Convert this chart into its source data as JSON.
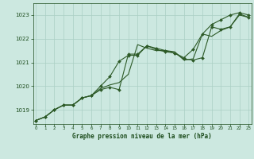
{
  "x": [
    0,
    1,
    2,
    3,
    4,
    5,
    6,
    7,
    8,
    9,
    10,
    11,
    12,
    13,
    14,
    15,
    16,
    17,
    18,
    19,
    20,
    21,
    22,
    23
  ],
  "line1": [
    1018.55,
    1018.7,
    1019.0,
    1019.2,
    1019.2,
    1019.5,
    1019.6,
    1019.85,
    1019.95,
    1019.85,
    1021.35,
    1021.35,
    1021.7,
    1021.55,
    1021.45,
    1021.4,
    1021.15,
    1021.1,
    1021.2,
    1022.5,
    1022.4,
    1022.5,
    1023.05,
    1022.9
  ],
  "line2": [
    1018.55,
    1018.7,
    1019.0,
    1019.2,
    1019.2,
    1019.5,
    1019.6,
    1020.0,
    1020.4,
    1021.05,
    1021.3,
    1021.3,
    1021.7,
    1021.6,
    1021.5,
    1021.4,
    1021.2,
    1021.55,
    1022.2,
    1022.6,
    1022.8,
    1023.0,
    1023.1,
    1023.0
  ],
  "line3": [
    1018.55,
    1018.7,
    1019.0,
    1019.2,
    1019.2,
    1019.5,
    1019.6,
    1019.9,
    1020.05,
    1020.15,
    1020.5,
    1021.75,
    1021.6,
    1021.5,
    1021.5,
    1021.45,
    1021.1,
    1021.15,
    1022.2,
    1022.1,
    1022.35,
    1022.5,
    1023.0,
    1022.9
  ],
  "bg_color": "#cce8e0",
  "line_color": "#2d5a27",
  "grid_color": "#aacfc4",
  "label_color": "#1a4a1a",
  "title": "Graphe pression niveau de la mer (hPa)",
  "ylim_min": 1018.4,
  "ylim_max": 1023.5,
  "yticks": [
    1019,
    1020,
    1021,
    1022,
    1023
  ],
  "xticks": [
    0,
    1,
    2,
    3,
    4,
    5,
    6,
    7,
    8,
    9,
    10,
    11,
    12,
    13,
    14,
    15,
    16,
    17,
    18,
    19,
    20,
    21,
    22,
    23
  ]
}
